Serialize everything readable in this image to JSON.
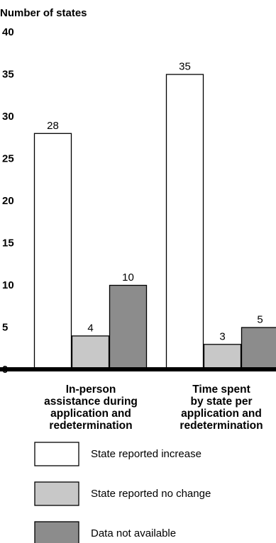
{
  "chart_data": {
    "type": "bar",
    "ylabel": "Number of states",
    "ylim": [
      0,
      40
    ],
    "yticks": [
      0,
      5,
      10,
      15,
      20,
      25,
      30,
      35,
      40
    ],
    "categories": [
      [
        "In-person",
        "assistance during",
        "application and",
        "redetermination"
      ],
      [
        "Time spent",
        "by state per",
        "application and",
        "redetermination"
      ]
    ],
    "series": [
      {
        "name": "State reported increase",
        "color": "#ffffff",
        "values": [
          28,
          35
        ]
      },
      {
        "name": "State reported no change",
        "color": "#c8c8c8",
        "values": [
          4,
          3
        ]
      },
      {
        "name": "Data not available",
        "color": "#8c8c8c",
        "values": [
          10,
          5
        ]
      }
    ],
    "legend_position": "bottom"
  }
}
